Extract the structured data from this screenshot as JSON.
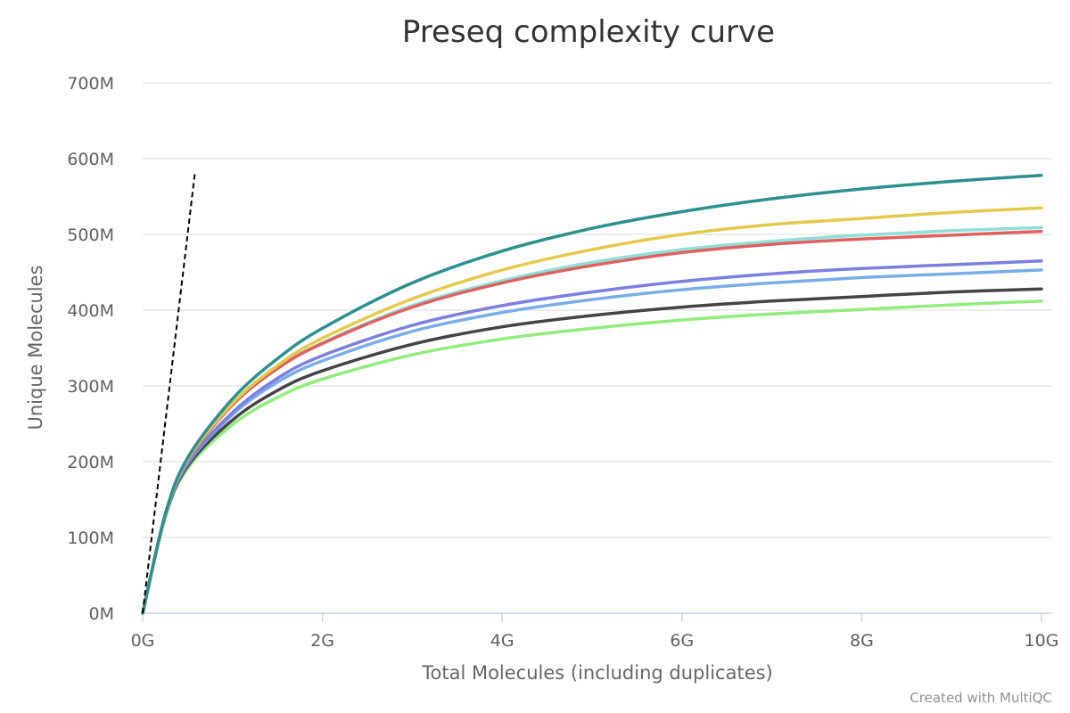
{
  "chart_data": {
    "type": "line",
    "title": "Preseq complexity curve",
    "xlabel": "Total Molecules (including duplicates)",
    "ylabel": "Unique Molecules",
    "xlim": [
      0,
      10000000000
    ],
    "ylim": [
      0,
      700000000
    ],
    "x_ticks": [
      "0G",
      "2G",
      "4G",
      "6G",
      "8G",
      "10G"
    ],
    "y_ticks": [
      "0M",
      "100M",
      "200M",
      "300M",
      "400M",
      "500M",
      "600M",
      "700M"
    ],
    "grid": true,
    "legend": "none",
    "x": [
      0,
      250000000,
      500000000,
      1000000000,
      1500000000,
      2000000000,
      3000000000,
      4000000000,
      5000000000,
      6000000000,
      7000000000,
      8000000000,
      9000000000,
      10000000000
    ],
    "series": [
      {
        "color": "#2b908f",
        "values": [
          0,
          130000000,
          205000000,
          283000000,
          336000000,
          376000000,
          436000000,
          478000000,
          508000000,
          530000000,
          547000000,
          560000000,
          570000000,
          578000000
        ]
      },
      {
        "color": "#e4c94b",
        "values": [
          0,
          129000000,
          203000000,
          277000000,
          327000000,
          363000000,
          415000000,
          453000000,
          480000000,
          500000000,
          513000000,
          521000000,
          529000000,
          535000000
        ]
      },
      {
        "color": "#e06060",
        "values": [
          0,
          129000000,
          202000000,
          275000000,
          323000000,
          356000000,
          404000000,
          436000000,
          459000000,
          476000000,
          487000000,
          494000000,
          499000000,
          504000000
        ]
      },
      {
        "color": "#8fdfd8",
        "values": [
          0,
          129000000,
          202000000,
          275000000,
          323000000,
          357000000,
          406000000,
          439000000,
          463000000,
          480000000,
          491000000,
          499000000,
          505000000,
          509000000
        ]
      },
      {
        "color": "#7c7fe0",
        "values": [
          0,
          128000000,
          198000000,
          265000000,
          310000000,
          340000000,
          380000000,
          406000000,
          424000000,
          438000000,
          448000000,
          455000000,
          460000000,
          465000000
        ]
      },
      {
        "color": "#79ade8",
        "values": [
          0,
          128000000,
          197000000,
          262000000,
          305000000,
          333000000,
          372000000,
          397000000,
          414000000,
          427000000,
          436000000,
          443000000,
          448000000,
          453000000
        ]
      },
      {
        "color": "#434348",
        "values": [
          0,
          127000000,
          194000000,
          255000000,
          294000000,
          320000000,
          355000000,
          378000000,
          393000000,
          404000000,
          412000000,
          418000000,
          424000000,
          428000000
        ]
      },
      {
        "color": "#90ed7d",
        "values": [
          0,
          126000000,
          191000000,
          249000000,
          285000000,
          309000000,
          341000000,
          362000000,
          376000000,
          387000000,
          395000000,
          401000000,
          407000000,
          412000000
        ]
      }
    ],
    "reference_line": {
      "style": "dashed",
      "color": "#000000",
      "x": [
        0,
        580000000
      ],
      "y": [
        0,
        580000000
      ]
    }
  },
  "credit": "Created with MultiQC"
}
